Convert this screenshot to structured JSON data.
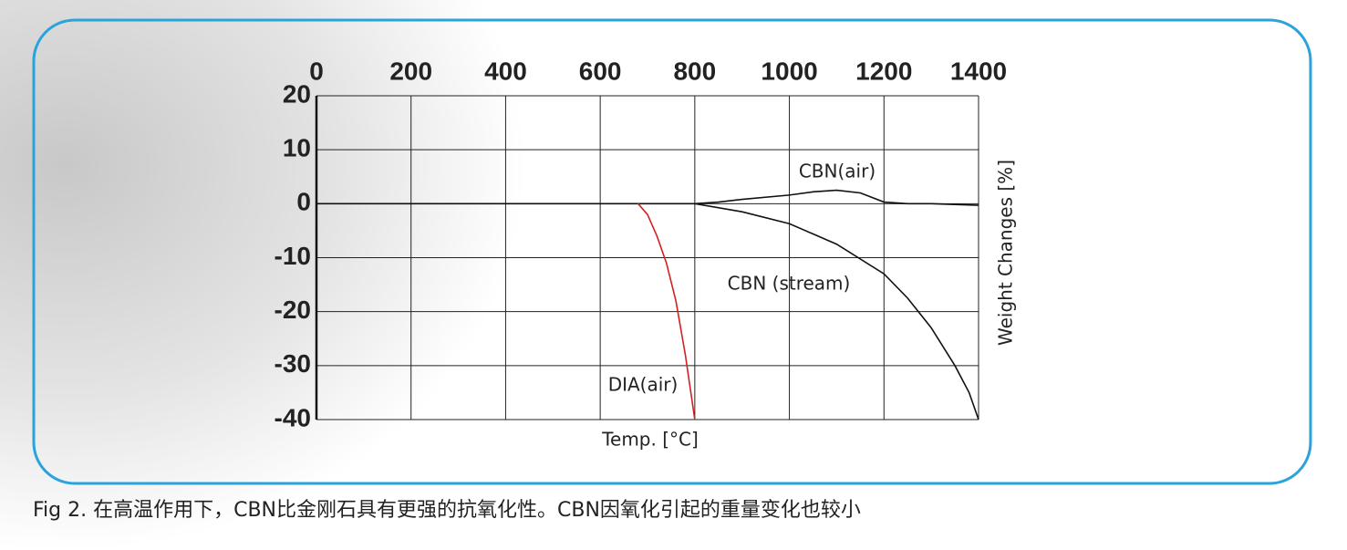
{
  "chart_data": {
    "type": "line",
    "x_label": "Temp. [°C]",
    "y_label": "Weight Changes [%]",
    "caption": "Fig 2. 在高温作用下，CBN比金刚石具有更强的抗氧化性。CBN因氧化引起的重量变化也较小",
    "xlim": [
      0,
      1400
    ],
    "xticks": [
      0,
      200,
      400,
      600,
      800,
      1000,
      1200,
      1400
    ],
    "ylim": [
      -40,
      20
    ],
    "yticks": [
      20,
      10,
      0,
      -10,
      -20,
      -30,
      -40
    ],
    "grid": true,
    "series": [
      {
        "name": "CBN(air)",
        "color": "#111111",
        "x": [
          0,
          200,
          400,
          600,
          800,
          850,
          900,
          1000,
          1050,
          1100,
          1150,
          1200,
          1250,
          1300,
          1400
        ],
        "values": [
          0,
          0,
          0,
          0,
          0,
          0.3,
          0.8,
          1.6,
          2.2,
          2.5,
          2,
          0.3,
          0,
          0,
          -0.3
        ]
      },
      {
        "name": "CBN (stream)",
        "color": "#111111",
        "x": [
          800,
          900,
          1000,
          1100,
          1200,
          1250,
          1300,
          1350,
          1380,
          1400
        ],
        "values": [
          0,
          -1.5,
          -3.7,
          -7.5,
          -13,
          -17.5,
          -23,
          -30,
          -35,
          -40
        ]
      },
      {
        "name": "DIA(air)",
        "color": "#d42020",
        "x": [
          680,
          700,
          720,
          740,
          760,
          780,
          800
        ],
        "values": [
          0,
          -2,
          -6,
          -11,
          -18,
          -28,
          -40
        ]
      }
    ]
  }
}
